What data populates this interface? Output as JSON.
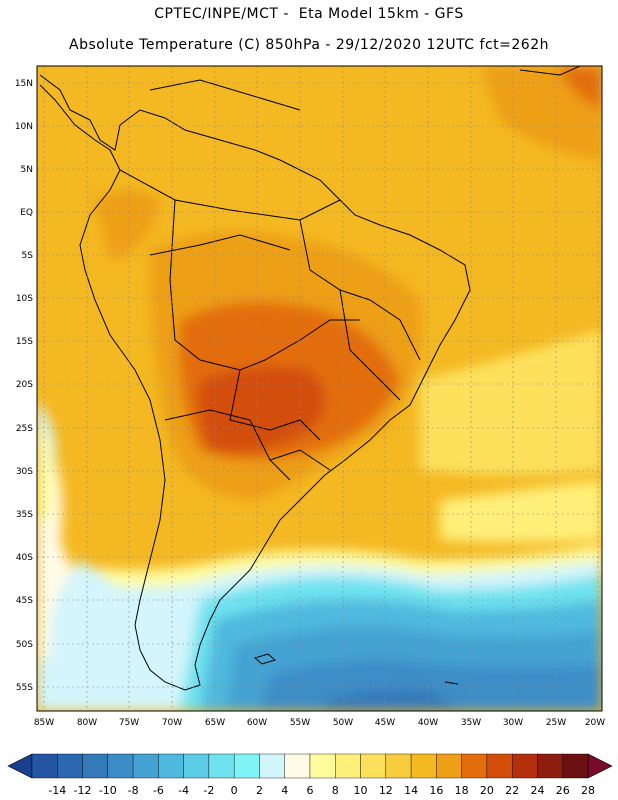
{
  "header": {
    "line1": "CPTEC/INPE/MCT -  Eta Model 15km - GFS",
    "line2": "Absolute Temperature (C) 850hPa - 29/12/2020 12UTC fct=262h"
  },
  "axes": {
    "lat_labels": [
      "15N",
      "10N",
      "5N",
      "EQ",
      "5S",
      "10S",
      "15S",
      "20S",
      "25S",
      "30S",
      "35S",
      "40S",
      "45S",
      "50S",
      "55S"
    ],
    "lon_labels": [
      "85W",
      "80W",
      "75W",
      "70W",
      "65W",
      "60W",
      "55W",
      "50W",
      "45W",
      "40W",
      "35W",
      "30W",
      "25W",
      "20W"
    ]
  },
  "colorbar": {
    "ticks": [
      "-14",
      "-12",
      "-10",
      "-8",
      "-6",
      "-4",
      "-2",
      "0",
      "2",
      "4",
      "6",
      "8",
      "10",
      "12",
      "14",
      "16",
      "18",
      "20",
      "22",
      "24",
      "26",
      "28"
    ],
    "colors": [
      "#1b3f8f",
      "#2455a3",
      "#2c67b1",
      "#3479ba",
      "#3c8dc7",
      "#45a3d3",
      "#4fb9de",
      "#5bcde6",
      "#6ee2ef",
      "#7ff5f8",
      "#d3f5fb",
      "#fffbe6",
      "#fffca0",
      "#fff07a",
      "#fde15d",
      "#f7cd3f",
      "#f4b822",
      "#ed9f16",
      "#e36d0d",
      "#d34d0b",
      "#b5300a",
      "#8f1d0f",
      "#6b1010",
      "#7a0a2a"
    ]
  },
  "icons": {
    "left_arrow": "colorbar-left-arrow",
    "right_arrow": "colorbar-right-arrow"
  }
}
